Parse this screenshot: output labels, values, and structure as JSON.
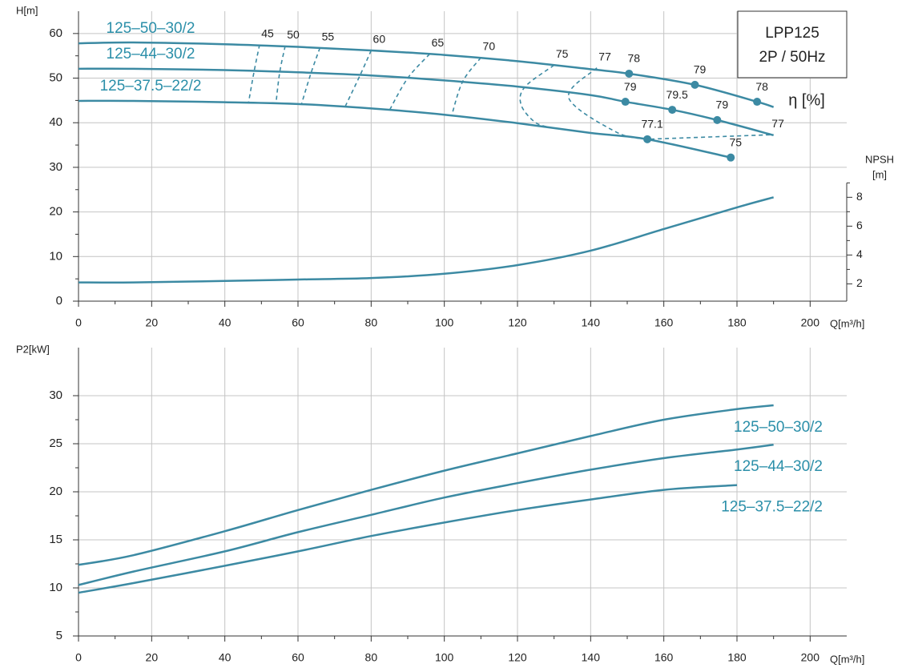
{
  "chart_data": [
    {
      "type": "line",
      "ylabel": "H[m]",
      "xlabel": "Q[m³/h]",
      "y2label": [
        "NPSH",
        "[m]"
      ],
      "box": [
        "LPP125",
        "2P / 50Hz"
      ],
      "efficiency_label": "η [%]",
      "xlim": [
        0,
        210
      ],
      "xticks": [
        0,
        20,
        40,
        60,
        80,
        100,
        120,
        140,
        160,
        180,
        200
      ],
      "ylim": [
        0,
        65
      ],
      "yticks": [
        0,
        10,
        20,
        30,
        40,
        50,
        60
      ],
      "y2lim": [
        0.8,
        20.9
      ],
      "y2ticks": [
        2,
        4,
        6,
        8
      ],
      "grid": true,
      "series": [
        {
          "name": "125–50–30/2",
          "color": "#3c8aa3",
          "x": [
            0,
            15,
            40,
            60,
            80,
            100,
            120,
            140,
            150.5,
            168.5,
            185.5,
            190
          ],
          "values": [
            57.8,
            58.0,
            57.6,
            57.0,
            56.2,
            55.2,
            53.8,
            52.0,
            51.0,
            48.5,
            44.7,
            43.5
          ]
        },
        {
          "name": "125–44–30/2",
          "color": "#3c8aa3",
          "x": [
            0,
            15,
            40,
            60,
            80,
            100,
            120,
            140,
            149.5,
            162.3,
            174.6,
            190
          ],
          "values": [
            52.1,
            52.1,
            51.8,
            51.3,
            50.6,
            49.5,
            48.1,
            46.2,
            44.7,
            42.9,
            40.6,
            37.2
          ]
        },
        {
          "name": "125–37.5–22/2",
          "color": "#3c8aa3",
          "x": [
            0,
            15,
            40,
            60,
            80,
            100,
            120,
            140,
            155.5,
            178.3
          ],
          "values": [
            44.9,
            44.9,
            44.6,
            44.2,
            43.2,
            41.8,
            39.9,
            37.7,
            36.3,
            32.2
          ]
        },
        {
          "axis": "y2",
          "color": "#3c8aa3",
          "x": [
            0,
            15,
            40,
            60,
            80,
            100,
            120,
            140,
            160,
            180,
            190
          ],
          "values": [
            2.1,
            2.1,
            2.2,
            2.3,
            2.4,
            2.7,
            3.3,
            4.3,
            5.8,
            7.3,
            8.0
          ]
        }
      ],
      "efficiency_points": {
        "x": [
          150.5,
          168.5,
          185.5,
          149.5,
          162.3,
          174.6,
          155.5,
          178.3
        ],
        "y": [
          51.0,
          48.5,
          44.7,
          44.7,
          42.9,
          40.6,
          36.3,
          32.2
        ],
        "values": [
          78,
          79,
          78,
          79,
          79.5,
          79,
          77.1,
          75
        ]
      },
      "efficiency_lines": [
        {
          "value": 45,
          "x": [
            49.5,
            48,
            46.5
          ],
          "y": [
            57.5,
            51.5,
            44.6
          ]
        },
        {
          "value": 50,
          "x": [
            56.5,
            55,
            54
          ],
          "y": [
            57.2,
            51.3,
            44.5
          ]
        },
        {
          "value": 55,
          "x": [
            66,
            63.5,
            61
          ],
          "y": [
            56.8,
            51.0,
            44.3
          ]
        },
        {
          "value": 60,
          "x": [
            80,
            77,
            73
          ],
          "y": [
            56.2,
            50.7,
            43.8
          ]
        },
        {
          "value": 65,
          "x": [
            96,
            90,
            85
          ],
          "y": [
            55.4,
            50.0,
            42.8
          ]
        },
        {
          "value": 70,
          "x": [
            110,
            105,
            102
          ],
          "y": [
            54.6,
            49.2,
            41.6
          ]
        },
        {
          "value": 75,
          "x": [
            130,
            122,
            121,
            125,
            130
          ],
          "y": [
            52.9,
            48.0,
            44.0,
            40.0,
            38.8
          ]
        },
        {
          "value": 77,
          "x": [
            141.7,
            134,
            147,
            155.5
          ],
          "y": [
            52.3,
            45.6,
            37.9,
            36.3
          ]
        },
        {
          "value": 77,
          "x": [
            189,
            155.5
          ],
          "y": [
            37.3,
            36.3
          ]
        }
      ]
    },
    {
      "type": "line",
      "ylabel": "P2[kW]",
      "xlabel": "Q[m³/h]",
      "xlim": [
        0,
        210
      ],
      "xticks": [
        0,
        20,
        40,
        60,
        80,
        100,
        120,
        140,
        160,
        180,
        200
      ],
      "ylim": [
        5,
        35
      ],
      "yticks": [
        5,
        10,
        15,
        20,
        25,
        30
      ],
      "grid": true,
      "series": [
        {
          "name": "125–50–30/2",
          "color": "#3c8aa3",
          "x": [
            0,
            15,
            40,
            60,
            80,
            100,
            120,
            140,
            160,
            180,
            190
          ],
          "values": [
            12.4,
            13.4,
            15.9,
            18.1,
            20.2,
            22.2,
            24.0,
            25.8,
            27.5,
            28.6,
            29.0
          ]
        },
        {
          "name": "125–44–30/2",
          "color": "#3c8aa3",
          "x": [
            0,
            15,
            40,
            60,
            80,
            100,
            120,
            140,
            160,
            180,
            190
          ],
          "values": [
            10.3,
            11.7,
            13.8,
            15.8,
            17.6,
            19.4,
            20.9,
            22.3,
            23.5,
            24.4,
            24.9
          ]
        },
        {
          "name": "125–37.5–22/2",
          "color": "#3c8aa3",
          "x": [
            0,
            15,
            40,
            60,
            80,
            100,
            120,
            140,
            160,
            180
          ],
          "values": [
            9.5,
            10.5,
            12.3,
            13.8,
            15.4,
            16.8,
            18.1,
            19.2,
            20.2,
            20.7
          ]
        }
      ]
    }
  ]
}
